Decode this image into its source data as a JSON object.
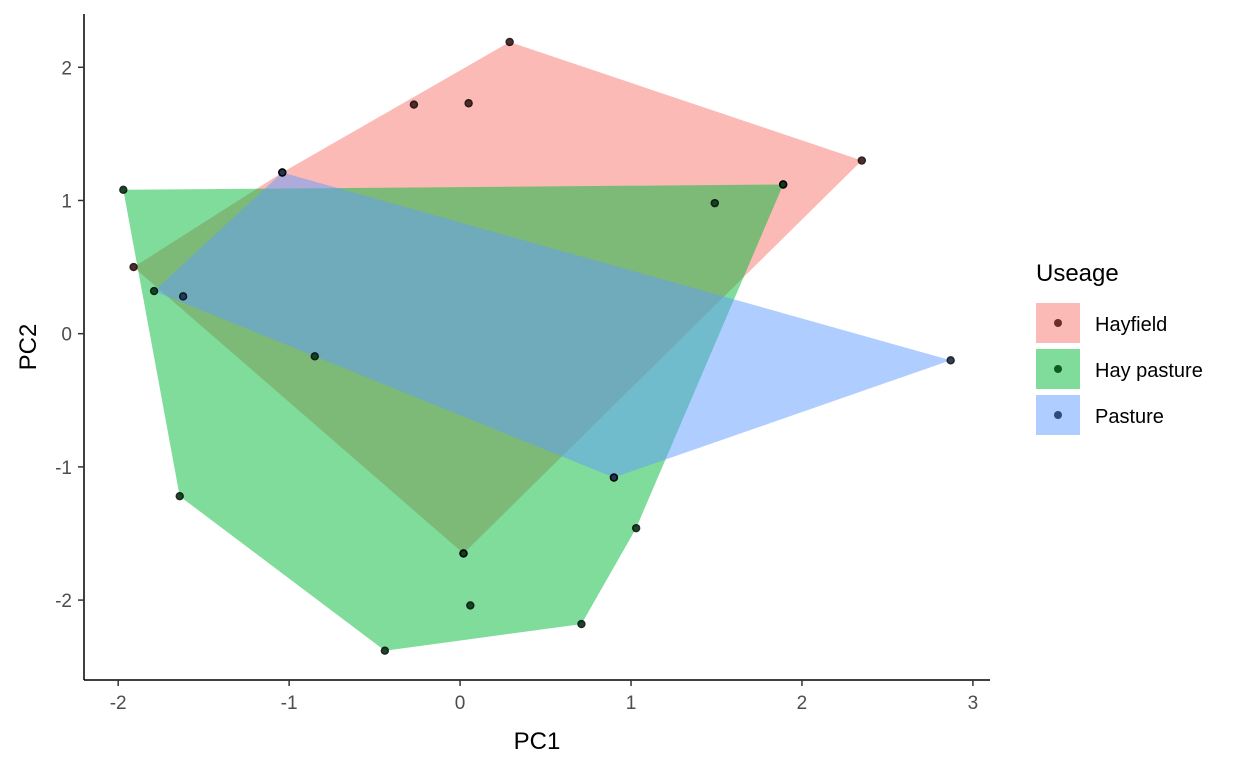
{
  "chart_data": {
    "type": "scatter",
    "xlabel": "PC1",
    "ylabel": "PC2",
    "xlim": [
      -2.2,
      3.1
    ],
    "ylim": [
      -2.6,
      2.4
    ],
    "x_ticks": [
      -2,
      -1,
      0,
      1,
      2,
      3
    ],
    "x_tick_labels": [
      "-2",
      "-1",
      "0",
      "1",
      "2",
      "3"
    ],
    "y_ticks": [
      -2,
      -1,
      0,
      1,
      2
    ],
    "y_tick_labels": [
      "-2",
      "-1",
      "0",
      "1",
      "2"
    ],
    "grid": false,
    "legend": {
      "title": "Useage",
      "position": "right"
    },
    "series": [
      {
        "name": "Hayfield",
        "fill": "#F8766D",
        "point_color": "#6B2E2A",
        "points": [
          {
            "x": 0.29,
            "y": 2.19
          },
          {
            "x": -0.27,
            "y": 1.72
          },
          {
            "x": 0.05,
            "y": 1.73
          },
          {
            "x": 2.35,
            "y": 1.3
          },
          {
            "x": 1.89,
            "y": 1.12
          },
          {
            "x": -1.04,
            "y": 1.21
          },
          {
            "x": -1.91,
            "y": 0.5
          },
          {
            "x": 0.02,
            "y": -1.65
          }
        ],
        "hull": [
          {
            "x": 0.29,
            "y": 2.19
          },
          {
            "x": 2.35,
            "y": 1.3
          },
          {
            "x": 0.02,
            "y": -1.65
          },
          {
            "x": -1.91,
            "y": 0.5
          },
          {
            "x": -1.04,
            "y": 1.21
          }
        ]
      },
      {
        "name": "Hay pasture",
        "fill": "#00BA38",
        "point_color": "#0D5A25",
        "points": [
          {
            "x": -1.97,
            "y": 1.08
          },
          {
            "x": 1.89,
            "y": 1.12
          },
          {
            "x": 1.49,
            "y": 0.98
          },
          {
            "x": -1.79,
            "y": 0.32
          },
          {
            "x": -0.85,
            "y": -0.17
          },
          {
            "x": 0.9,
            "y": -1.08
          },
          {
            "x": 1.03,
            "y": -1.46
          },
          {
            "x": -1.64,
            "y": -1.22
          },
          {
            "x": 0.02,
            "y": -1.65
          },
          {
            "x": 0.06,
            "y": -2.04
          },
          {
            "x": 0.71,
            "y": -2.18
          },
          {
            "x": -0.44,
            "y": -2.38
          }
        ],
        "hull": [
          {
            "x": -1.97,
            "y": 1.08
          },
          {
            "x": 1.89,
            "y": 1.12
          },
          {
            "x": 1.03,
            "y": -1.46
          },
          {
            "x": 0.71,
            "y": -2.18
          },
          {
            "x": -0.44,
            "y": -2.38
          },
          {
            "x": -1.64,
            "y": -1.22
          }
        ]
      },
      {
        "name": "Pasture",
        "fill": "#619CFF",
        "point_color": "#2B4C7E",
        "points": [
          {
            "x": -1.04,
            "y": 1.21
          },
          {
            "x": -1.62,
            "y": 0.28
          },
          {
            "x": 2.87,
            "y": -0.2
          },
          {
            "x": 0.9,
            "y": -1.08
          }
        ],
        "hull": [
          {
            "x": -1.04,
            "y": 1.21
          },
          {
            "x": 2.87,
            "y": -0.2
          },
          {
            "x": 0.9,
            "y": -1.08
          },
          {
            "x": -1.79,
            "y": 0.32
          }
        ]
      }
    ]
  }
}
